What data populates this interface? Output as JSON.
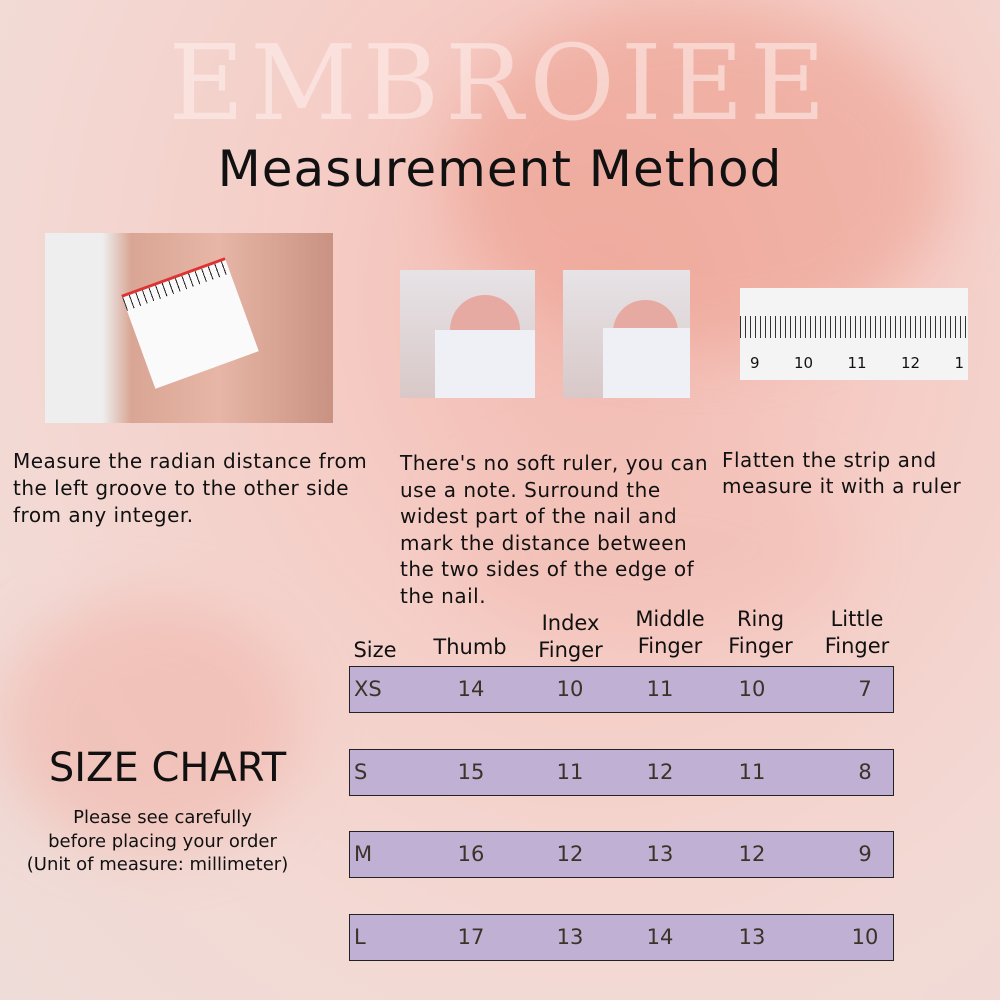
{
  "watermark": "EMBROIEE",
  "title": "Measurement Method",
  "steps": [
    {
      "caption": "Measure the radian distance from the left groove to the other side from any integer."
    },
    {
      "caption": "There's no soft ruler, you can use a note. Surround the widest part of the nail and mark the distance between the two sides of the edge of the nail."
    },
    {
      "caption": "Flatten the strip and measure it with a ruler"
    }
  ],
  "ruler_labels": [
    "9",
    "10",
    "11",
    "12",
    "1"
  ],
  "size_chart": {
    "title": "SIZE CHART",
    "note_lines": [
      "Please see carefully",
      "before placing your order",
      "(Unit of measure: millimeter)"
    ],
    "headers": [
      [
        "Size"
      ],
      [
        "Thumb"
      ],
      [
        "Index",
        "Finger"
      ],
      [
        "Middle",
        "Finger"
      ],
      [
        "Ring",
        "Finger"
      ],
      [
        "Little",
        "Finger"
      ]
    ],
    "rows": [
      [
        "XS",
        "14",
        "10",
        "11",
        "10",
        "7"
      ],
      [
        "S",
        "15",
        "11",
        "12",
        "11",
        "8"
      ],
      [
        "M",
        "16",
        "12",
        "13",
        "12",
        "9"
      ],
      [
        "L",
        "17",
        "13",
        "14",
        "13",
        "10"
      ]
    ],
    "row_color": "#bfb0d4"
  }
}
